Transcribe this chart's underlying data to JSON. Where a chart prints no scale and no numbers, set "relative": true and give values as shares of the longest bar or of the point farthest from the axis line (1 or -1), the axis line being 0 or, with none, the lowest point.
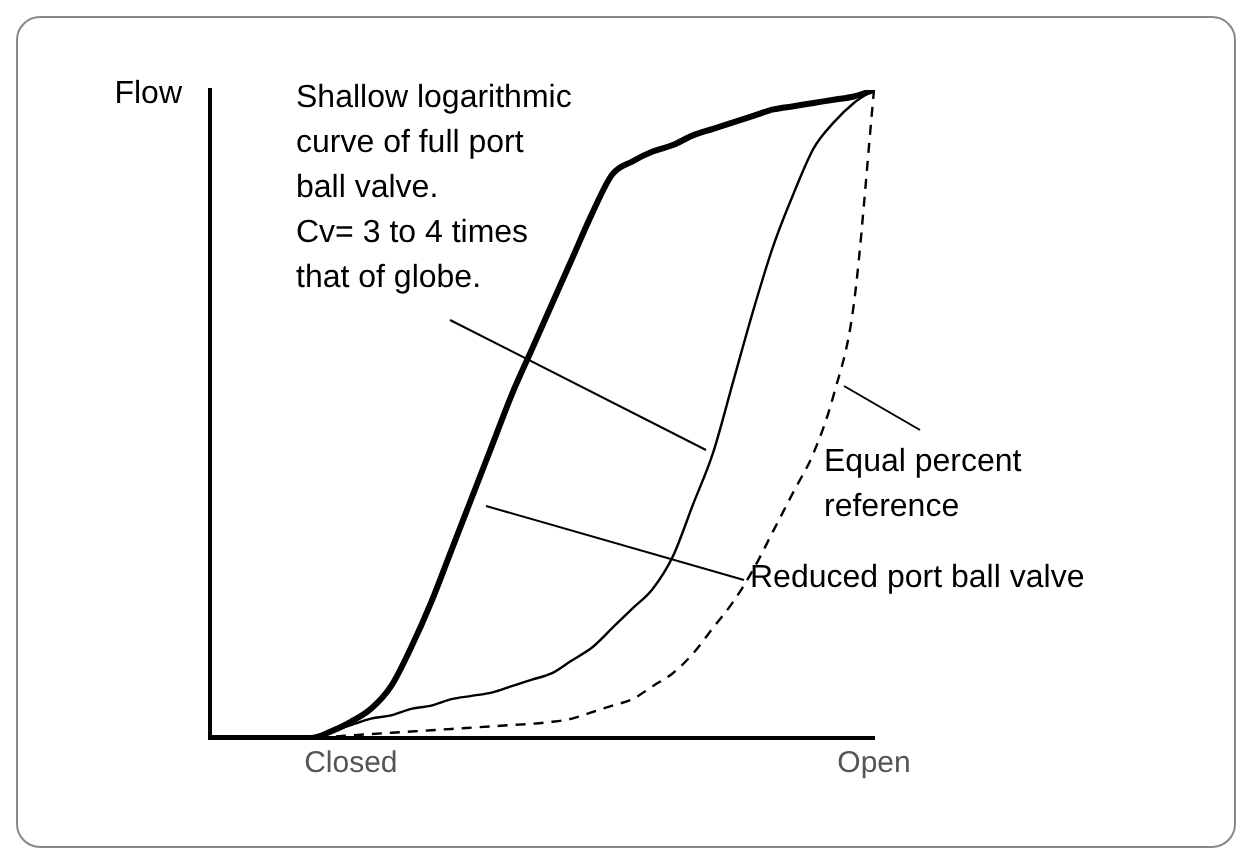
{
  "chart_data": {
    "type": "line",
    "relative": true,
    "ylabel": "Flow",
    "marker": "none",
    "categories": [
      null,
      null,
      null,
      null,
      null,
      null,
      null,
      "Closed",
      null,
      null,
      null,
      null,
      null,
      null,
      null,
      null,
      null,
      null,
      null,
      null,
      null,
      null,
      null,
      null,
      null,
      null,
      null,
      null,
      null,
      null,
      null,
      null,
      null,
      "Open"
    ],
    "series": [
      {
        "color": "#000000",
        "line_style": "solid",
        "values": [
          0,
          0,
          0,
          0,
          0,
          0,
          0.01,
          0.025,
          0.045,
          0.08,
          0.14,
          0.21,
          0.29,
          0.37,
          0.45,
          0.53,
          0.6,
          0.67,
          0.74,
          0.81,
          0.87,
          0.89,
          0.905,
          0.915,
          0.93,
          0.94,
          0.95,
          0.96,
          0.97,
          0.975,
          0.98,
          0.985,
          0.99,
          1
        ]
      },
      {
        "color": "#000000",
        "line_style": "solid",
        "values": [
          0,
          0,
          0,
          0,
          0,
          0,
          0.01,
          0.02,
          0.03,
          0.035,
          0.045,
          0.05,
          0.06,
          0.065,
          0.07,
          0.08,
          0.09,
          0.1,
          0.12,
          0.14,
          0.17,
          0.2,
          0.23,
          0.28,
          0.36,
          0.44,
          0.55,
          0.66,
          0.76,
          0.84,
          0.91,
          0.95,
          0.98,
          1
        ]
      },
      {
        "color": "#000000",
        "line_style": "dashed",
        "values": [
          0,
          0,
          0,
          0,
          0,
          0,
          0.002,
          0.004,
          0.006,
          0.008,
          0.01,
          0.012,
          0.014,
          0.016,
          0.018,
          0.02,
          0.022,
          0.025,
          0.03,
          0.04,
          0.05,
          0.06,
          0.08,
          0.1,
          0.13,
          0.17,
          0.21,
          0.26,
          0.32,
          0.38,
          0.44,
          0.53,
          0.67,
          1
        ]
      }
    ],
    "annotations": [
      "Shallow logarithmic\ncurve of full port\nball valve.\nCv= 3 to 4 times\nthat of globe.",
      "Equal percent\nreference",
      "Reduced port ball valve"
    ]
  }
}
